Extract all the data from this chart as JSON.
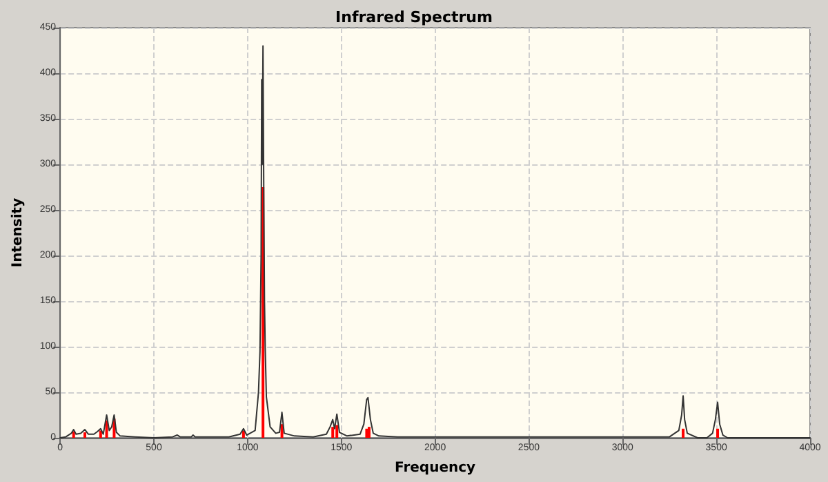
{
  "chart_data": {
    "type": "line",
    "title": "Infrared Spectrum",
    "xlabel": "Frequency",
    "ylabel": "Intensity",
    "xlim": [
      0,
      4000
    ],
    "xticks": [
      0,
      500,
      1000,
      1500,
      2000,
      2500,
      3000,
      3500,
      4000
    ],
    "ylim": [
      0,
      450
    ],
    "yticks": [
      0,
      50,
      100,
      150,
      200,
      250,
      300,
      350,
      400,
      450
    ],
    "grid": true,
    "marker": "none",
    "line_style": "solid",
    "series": [
      {
        "color": "#333333",
        "x": [
          0,
          30,
          60,
          72,
          85,
          110,
          132,
          150,
          180,
          200,
          216,
          230,
          248,
          262,
          275,
          288,
          300,
          320,
          400,
          500,
          600,
          625,
          640,
          700,
          709,
          720,
          800,
          900,
          960,
          978,
          995,
          1040,
          1058,
          1066,
          1072,
          1075,
          1078,
          1082,
          1086,
          1090,
          1094,
          1100,
          1120,
          1150,
          1170,
          1183,
          1195,
          1250,
          1350,
          1420,
          1440,
          1454,
          1464,
          1476,
          1490,
          1530,
          1600,
          1620,
          1635,
          1642,
          1655,
          1670,
          1700,
          1800,
          2000,
          2500,
          3000,
          3250,
          3300,
          3315,
          3323,
          3331,
          3345,
          3400,
          3450,
          3480,
          3495,
          3507,
          3518,
          3535,
          3560,
          3600,
          4000
        ],
        "values": [
          0,
          1,
          5,
          9,
          4,
          5,
          9,
          4,
          4,
          7,
          10,
          4,
          25,
          8,
          12,
          25,
          6,
          2,
          1,
          0,
          1,
          3,
          1,
          1,
          3,
          1,
          1,
          1,
          4,
          10,
          3,
          8,
          50,
          95,
          200,
          393,
          300,
          430,
          275,
          150,
          97,
          45,
          12,
          5,
          6,
          28,
          5,
          2,
          1,
          4,
          12,
          20,
          10,
          26,
          6,
          2,
          4,
          15,
          42,
          44,
          20,
          5,
          2,
          1,
          1,
          1,
          1,
          1,
          8,
          25,
          46,
          20,
          5,
          0,
          0,
          5,
          20,
          39,
          15,
          3,
          0,
          0,
          0
        ]
      },
      {
        "type": "bar",
        "color": "#ff0000",
        "x": [
          72,
          132,
          216,
          248,
          288,
          978,
          1082,
          1183,
          1454,
          1476,
          1635,
          1648,
          3323,
          3507
        ],
        "values": [
          7,
          6,
          8,
          19,
          21,
          8,
          275,
          15,
          12,
          14,
          10,
          12,
          10,
          10
        ]
      }
    ]
  }
}
